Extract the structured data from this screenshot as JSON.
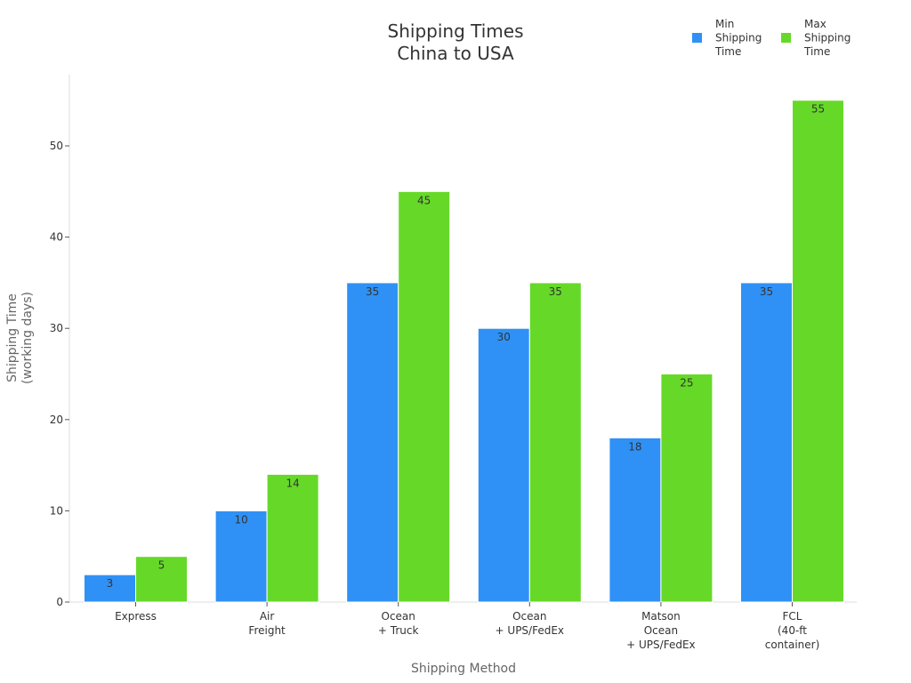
{
  "chart_data": {
    "type": "bar",
    "title": [
      "Shipping Times",
      "China to USA"
    ],
    "xlabel": "Shipping Method",
    "ylabel": [
      "Shipping Time",
      "(working days)"
    ],
    "categories": [
      [
        "Express"
      ],
      [
        "Air",
        "Freight"
      ],
      [
        "Ocean",
        "+ Truck"
      ],
      [
        "Ocean",
        "+ UPS/FedEx"
      ],
      [
        "Matson",
        "Ocean",
        "+ UPS/FedEx"
      ],
      [
        "FCL",
        "(40-ft",
        "container)"
      ]
    ],
    "series": [
      {
        "name": [
          "Min",
          "Shipping",
          "Time"
        ],
        "color": "#2f91f5",
        "values": [
          3,
          10,
          35,
          30,
          18,
          35
        ]
      },
      {
        "name": [
          "Max",
          "Shipping",
          "Time"
        ],
        "color": "#66d928",
        "values": [
          5,
          14,
          45,
          35,
          25,
          55
        ]
      }
    ],
    "ylim": [
      0,
      57.8
    ],
    "yticks": [
      0,
      10,
      20,
      30,
      40,
      50
    ],
    "grid": false,
    "legend_position": "top-right"
  }
}
